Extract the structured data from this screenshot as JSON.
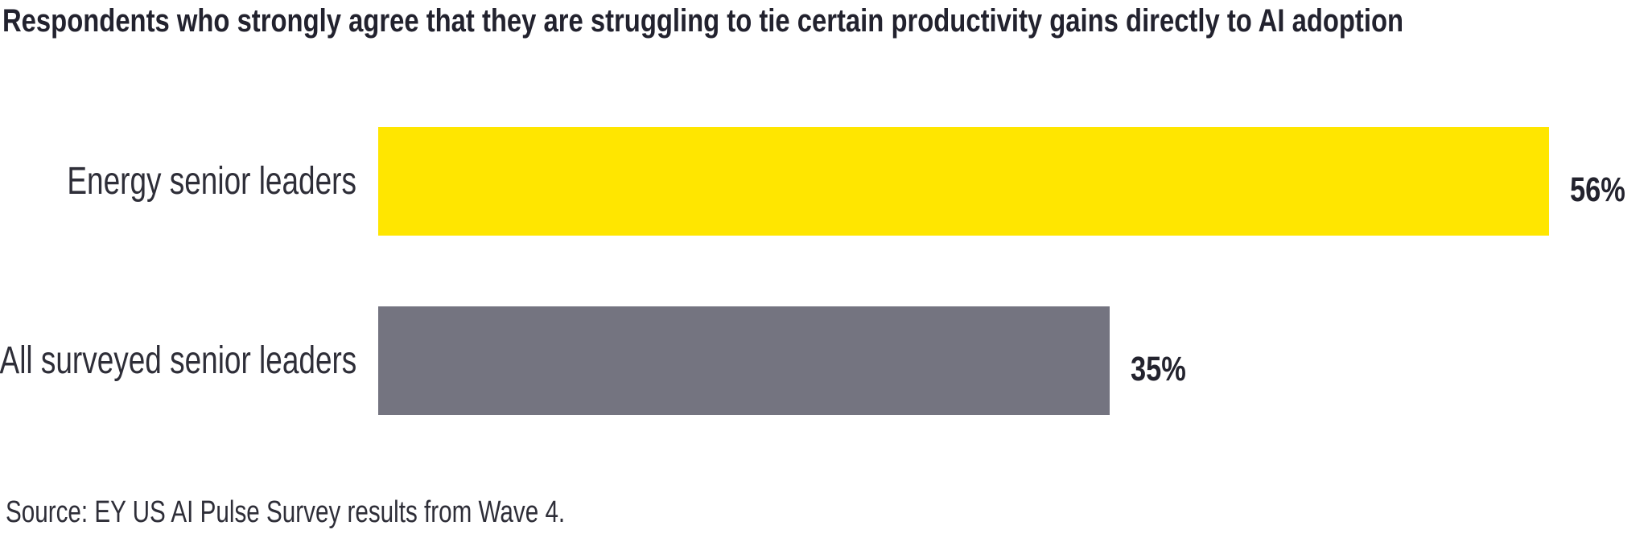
{
  "page": {
    "background": "#FFFFFF"
  },
  "colors": {
    "title_text": "#22222E",
    "category_label_text": "#2E2E38",
    "value_label_text": "#23232E",
    "source_text": "#2E2E38",
    "energy_bar": "#FFE600",
    "all_leaders_bar": "#747480"
  },
  "chart_data": {
    "type": "bar",
    "orientation": "horizontal",
    "title": "Respondents who strongly agree that they are struggling to tie certain productivity gains directly to AI adoption",
    "categories": [
      "Energy senior leaders",
      "All surveyed senior leaders"
    ],
    "values": [
      56,
      35
    ],
    "value_labels": [
      "56%",
      "35%"
    ],
    "bar_colors": [
      "#FFE600",
      "#747480"
    ],
    "xlim": [
      0,
      60
    ],
    "xlabel": "",
    "ylabel": "",
    "axes": "hidden",
    "grid": false,
    "legend": "none",
    "data_label_position": "outside-end",
    "source_note": "Source: EY US AI Pulse Survey results from Wave 4."
  }
}
